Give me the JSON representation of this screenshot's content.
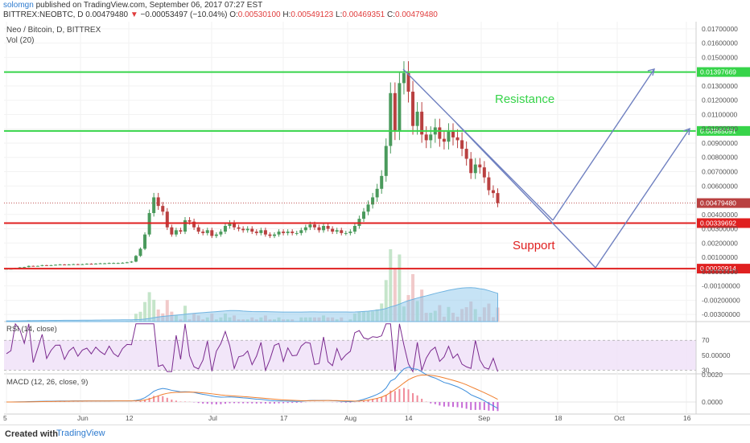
{
  "header": {
    "author": "solomgn",
    "published": "published on TradingView.com, September 06, 2017 07:27 EST",
    "symbol": "BITTREX:NEOBTC, D",
    "price": "0.00479480",
    "arrow": "▼",
    "change": "−0.00053497 (−10.04%)",
    "ohlc_o_label": "O:",
    "ohlc_o": "0.00530100",
    "ohlc_h_label": "H:",
    "ohlc_h": "0.00549123",
    "ohlc_l_label": "L:",
    "ohlc_l": "0.00469351",
    "ohlc_c_label": "C:",
    "ohlc_c": "0.00479480"
  },
  "main_pane": {
    "title": "Neo / Bitcoin, D, BITTREX",
    "vol_label": "Vol (20)"
  },
  "footer": {
    "created_with": "Created with",
    "brand": "TradingView"
  },
  "colors": {
    "up": "#4a9a5c",
    "down": "#b94040",
    "resistance": "#37d44a",
    "support": "#e02020",
    "projection": "#6f80c0",
    "rsi": "#7b2b8f",
    "macd": "#3e8fdc",
    "signal": "#f07f2e"
  },
  "chart_data": [
    {
      "type": "candlestick",
      "title": "Neo / Bitcoin, D, BITTREX",
      "ylim": [
        -0.0035,
        0.0175
      ],
      "y_ticks": [
        "0.01700000",
        "0.01600000",
        "0.01500000",
        "0.01300000",
        "0.01200000",
        "0.01100000",
        "0.01000000",
        "0.00900000",
        "0.00800000",
        "0.00700000",
        "0.00600000",
        "0.00400000",
        "0.00300000",
        "0.00200000",
        "0.00100000",
        "0.00000000",
        "-0.00100000",
        "-0.00200000",
        "-0.00300000"
      ],
      "y_tick_values": [
        0.017,
        0.016,
        0.015,
        0.013,
        0.012,
        0.011,
        0.01,
        0.009,
        0.008,
        0.007,
        0.006,
        0.004,
        0.003,
        0.002,
        0.001,
        0.0,
        -0.001,
        -0.002,
        -0.003
      ],
      "x_ticks": [
        "5",
        "Jun",
        "12",
        "Jul",
        "17",
        "Aug",
        "14",
        "Sep",
        "18",
        "Oct",
        "16"
      ],
      "last_price_label": "0.00479480",
      "levels": [
        {
          "name": "Resistance",
          "role": "resistance",
          "value": 0.01397669,
          "label": "0.01397669"
        },
        {
          "name": "Resistance",
          "role": "resistance",
          "value": 0.00985091,
          "label": "0.00985091"
        },
        {
          "name": "Support",
          "role": "support",
          "value": 0.00339692,
          "label": "0.00339692"
        },
        {
          "name": "Support",
          "role": "support",
          "value": 0.00020914,
          "label": "0.00020914"
        }
      ],
      "annotations": [
        {
          "text": "Resistance",
          "role": "resistance"
        },
        {
          "text": "Support",
          "role": "support"
        }
      ],
      "close_series": [
        0.0002,
        0.0002,
        0.00025,
        0.0003,
        0.00032,
        0.0004,
        0.00038,
        0.0004,
        0.00045,
        0.00043,
        0.00045,
        0.00048,
        0.0005,
        0.00048,
        0.0005,
        0.00052,
        0.0005,
        0.00052,
        0.00055,
        0.00054,
        0.00056,
        0.00058,
        0.00058,
        0.0006,
        0.0006,
        0.0006,
        0.00062,
        0.00065,
        0.0007,
        0.0011,
        0.0016,
        0.0026,
        0.0041,
        0.0052,
        0.0046,
        0.0042,
        0.0031,
        0.0026,
        0.0029,
        0.0028,
        0.0036,
        0.0035,
        0.0031,
        0.0028,
        0.0027,
        0.0029,
        0.0025,
        0.0026,
        0.0028,
        0.0032,
        0.0034,
        0.0031,
        0.003,
        0.0029,
        0.003,
        0.0028,
        0.0027,
        0.0029,
        0.0026,
        0.0025,
        0.0026,
        0.0028,
        0.0027,
        0.0028,
        0.0027,
        0.0027,
        0.0029,
        0.0031,
        0.0033,
        0.0031,
        0.0029,
        0.0032,
        0.003,
        0.0028,
        0.0029,
        0.0027,
        0.0027,
        0.0028,
        0.0032,
        0.0037,
        0.0042,
        0.0047,
        0.0052,
        0.0058,
        0.0067,
        0.0088,
        0.0125,
        0.0098,
        0.0132,
        0.0139,
        0.0126,
        0.0102,
        0.0112,
        0.0096,
        0.0092,
        0.0096,
        0.0101,
        0.0093,
        0.0091,
        0.0098,
        0.0094,
        0.0092,
        0.0086,
        0.0079,
        0.0069,
        0.0075,
        0.0073,
        0.0066,
        0.0057,
        0.0055,
        0.0048
      ]
    },
    {
      "type": "line",
      "title": "RSI (14, close)",
      "ylim": [
        25,
        95
      ],
      "y_ticks": [
        "70",
        "50.00000",
        "30"
      ],
      "y_tick_values": [
        70,
        50,
        30
      ]
    },
    {
      "type": "line",
      "title": "MACD (12, 26, close, 9)",
      "y_ticks": [
        "0.0020",
        "0.0000"
      ],
      "y_tick_values": [
        0.002,
        0.0
      ]
    }
  ]
}
